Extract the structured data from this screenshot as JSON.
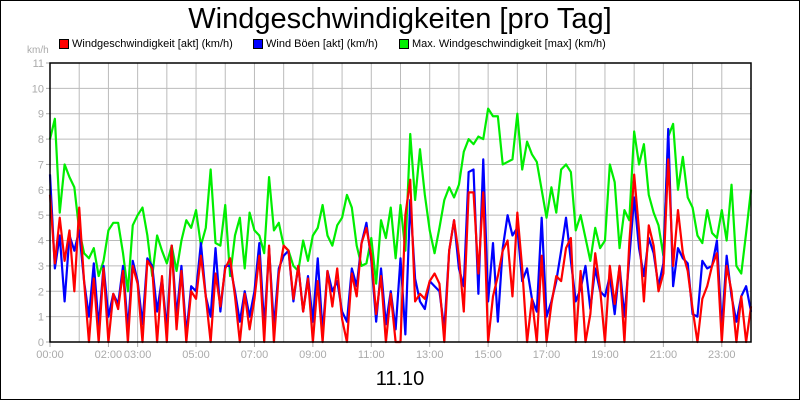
{
  "chart_data": {
    "type": "line",
    "title": "Windgeschwindigkeiten [pro Tag]",
    "subtitle": "11.10",
    "ylabel": "km/h",
    "xlabel": "",
    "ylim": [
      0,
      11
    ],
    "xlim": [
      "00:00",
      "24:00"
    ],
    "grid": true,
    "legend_position": "top",
    "y_ticks": [
      "0",
      "1",
      "2",
      "3",
      "4",
      "5",
      "6",
      "7",
      "8",
      "9",
      "10",
      "11"
    ],
    "x_ticks": [
      {
        "label": "00:00",
        "hour": 0
      },
      {
        "label": "02:00",
        "hour": 2
      },
      {
        "label": "03:00",
        "hour": 3
      },
      {
        "label": "05:00",
        "hour": 5
      },
      {
        "label": "07:00",
        "hour": 7
      },
      {
        "label": "09:00",
        "hour": 9
      },
      {
        "label": "11:00",
        "hour": 11
      },
      {
        "label": "13:00",
        "hour": 13
      },
      {
        "label": "15:00",
        "hour": 15
      },
      {
        "label": "17:00",
        "hour": 17
      },
      {
        "label": "19:00",
        "hour": 19
      },
      {
        "label": "21:00",
        "hour": 21
      },
      {
        "label": "23:00",
        "hour": 23
      }
    ],
    "x": [
      "00:00",
      "00:10",
      "00:20",
      "00:30",
      "00:40",
      "00:50",
      "01:00",
      "01:10",
      "01:20",
      "01:30",
      "01:40",
      "01:50",
      "02:00",
      "02:10",
      "02:20",
      "02:30",
      "02:40",
      "02:50",
      "03:00",
      "03:10",
      "03:20",
      "03:30",
      "03:40",
      "03:50",
      "04:00",
      "04:10",
      "04:20",
      "04:30",
      "04:40",
      "04:50",
      "05:00",
      "05:10",
      "05:20",
      "05:30",
      "05:40",
      "05:50",
      "06:00",
      "06:10",
      "06:20",
      "06:30",
      "06:40",
      "06:50",
      "07:00",
      "07:10",
      "07:20",
      "07:30",
      "07:40",
      "07:50",
      "08:00",
      "08:10",
      "08:20",
      "08:30",
      "08:40",
      "08:50",
      "09:00",
      "09:10",
      "09:20",
      "09:30",
      "09:40",
      "09:50",
      "10:00",
      "10:10",
      "10:20",
      "10:30",
      "10:40",
      "10:50",
      "11:00",
      "11:10",
      "11:20",
      "11:30",
      "11:40",
      "11:50",
      "12:00",
      "12:10",
      "12:20",
      "12:30",
      "12:40",
      "12:50",
      "13:00",
      "13:10",
      "13:20",
      "13:30",
      "13:40",
      "13:50",
      "14:00",
      "14:10",
      "14:20",
      "14:30",
      "14:40",
      "14:50",
      "15:00",
      "15:10",
      "15:20",
      "15:30",
      "15:40",
      "15:50",
      "16:00",
      "16:10",
      "16:20",
      "16:30",
      "16:40",
      "16:50",
      "17:00",
      "17:10",
      "17:20",
      "17:30",
      "17:40",
      "17:50",
      "18:00",
      "18:10",
      "18:20",
      "18:30",
      "18:40",
      "18:50",
      "19:00",
      "19:10",
      "19:20",
      "19:30",
      "19:40",
      "19:50",
      "20:00",
      "20:10",
      "20:20",
      "20:30",
      "20:40",
      "20:50",
      "21:00",
      "21:10",
      "21:20",
      "21:30",
      "21:40",
      "21:50",
      "22:00",
      "22:10",
      "22:20",
      "22:30",
      "22:40",
      "22:50",
      "23:00",
      "23:10",
      "23:20",
      "23:30",
      "23:40",
      "23:50",
      "24:00"
    ],
    "series": [
      {
        "name": "Max. Windgeschwindigkeit [max] (km/h)",
        "color": "#00ee00",
        "values": [
          8.0,
          8.8,
          5.1,
          7.0,
          6.5,
          6.1,
          4.4,
          3.5,
          3.3,
          3.7,
          2.6,
          3.2,
          4.4,
          4.7,
          4.7,
          3.5,
          2.0,
          4.6,
          5.0,
          5.3,
          4.2,
          2.6,
          4.2,
          3.6,
          3.1,
          3.8,
          2.8,
          4.0,
          4.8,
          4.5,
          5.2,
          3.8,
          4.5,
          6.8,
          3.9,
          3.8,
          5.4,
          2.6,
          4.2,
          4.9,
          2.9,
          5.1,
          4.4,
          4.2,
          3.5,
          6.5,
          4.4,
          4.7,
          3.8,
          3.6,
          3.0,
          2.8,
          4.0,
          3.2,
          4.2,
          4.5,
          5.4,
          4.2,
          3.8,
          4.6,
          4.9,
          5.8,
          5.3,
          3.8,
          3.0,
          3.1,
          4.1,
          2.3,
          4.8,
          4.1,
          5.3,
          3.3,
          5.4,
          3.6,
          8.2,
          5.6,
          7.6,
          5.8,
          4.4,
          3.5,
          4.5,
          5.6,
          6.1,
          5.7,
          6.2,
          7.5,
          8.0,
          7.8,
          8.1,
          8.0,
          9.2,
          8.9,
          8.9,
          7.0,
          7.1,
          7.2,
          9.0,
          6.8,
          7.9,
          7.4,
          7.1,
          6.0,
          4.9,
          6.1,
          5.1,
          6.8,
          7.0,
          6.7,
          4.4,
          5.0,
          4.1,
          3.2,
          4.5,
          3.7,
          4.0,
          7.0,
          6.3,
          3.7,
          5.2,
          4.8,
          8.3,
          7.0,
          7.8,
          5.8,
          5.1,
          4.6,
          3.4,
          8.1,
          8.6,
          6.0,
          7.3,
          5.7,
          5.3,
          4.2,
          3.9,
          5.2,
          4.3,
          4.1,
          5.2,
          4.0,
          6.2,
          3.0,
          2.7,
          4.3,
          6.0
        ]
      },
      {
        "name": "Wind Böen [akt] (km/h)",
        "color": "#0000ff",
        "values": [
          6.6,
          2.9,
          4.2,
          1.6,
          4.2,
          3.6,
          4.4,
          2.4,
          1.0,
          3.1,
          0.6,
          3.0,
          1.0,
          1.9,
          1.5,
          3.0,
          0.5,
          3.2,
          2.4,
          0.7,
          3.3,
          3.0,
          1.2,
          2.5,
          0.5,
          3.8,
          1.0,
          3.0,
          0.3,
          2.2,
          2.0,
          3.9,
          1.8,
          1.0,
          3.7,
          1.2,
          3.0,
          3.0,
          2.0,
          0.8,
          2.0,
          1.0,
          2.0,
          3.9,
          0.6,
          3.7,
          0.6,
          2.9,
          3.4,
          3.6,
          1.6,
          3.0,
          1.2,
          2.6,
          0.8,
          3.3,
          0.4,
          2.8,
          2.0,
          2.4,
          1.2,
          0.8,
          2.9,
          2.2,
          3.9,
          4.7,
          3.2,
          0.8,
          2.9,
          0.7,
          2.0,
          0.5,
          3.3,
          0.3,
          5.6,
          2.5,
          1.6,
          1.3,
          2.4,
          2.2,
          2.0,
          0.5,
          3.6,
          4.8,
          2.9,
          2.2,
          6.7,
          6.8,
          1.9,
          7.2,
          1.6,
          3.9,
          0.8,
          3.7,
          5.0,
          4.2,
          4.5,
          2.4,
          2.9,
          1.7,
          1.2,
          4.9,
          1.0,
          1.6,
          2.4,
          3.6,
          4.9,
          3.2,
          1.6,
          2.1,
          3.0,
          1.3,
          2.9,
          2.0,
          1.8,
          2.6,
          1.1,
          3.0,
          1.0,
          3.3,
          5.7,
          3.7,
          2.6,
          4.1,
          3.5,
          2.2,
          3.1,
          8.4,
          2.2,
          3.7,
          3.3,
          3.1,
          1.1,
          1.0,
          3.2,
          2.9,
          3.0,
          4.0,
          0.5,
          3.4,
          1.8,
          0.8,
          1.8,
          2.2,
          1.2
        ]
      },
      {
        "name": "Windgeschwindigkeit [akt] (km/h)",
        "color": "#ff0000",
        "values": [
          5.8,
          3.1,
          4.9,
          3.2,
          4.4,
          2.0,
          5.3,
          2.4,
          0,
          2.5,
          0,
          2.9,
          0,
          1.9,
          1.3,
          2.8,
          0,
          3.0,
          2.3,
          0,
          3.2,
          2.9,
          0,
          2.6,
          0,
          3.8,
          0.5,
          2.8,
          0,
          2.0,
          1.7,
          3.4,
          1.8,
          0,
          2.7,
          1.4,
          2.9,
          3.3,
          1.8,
          0,
          1.9,
          0.5,
          1.7,
          3.4,
          0,
          3.8,
          0,
          2.7,
          3.8,
          3.6,
          1.7,
          3.0,
          1.2,
          2.5,
          0,
          2.4,
          0,
          2.8,
          1.4,
          2.9,
          0.9,
          0,
          2.7,
          1.8,
          3.9,
          4.5,
          3.4,
          1.1,
          2.6,
          0,
          1.9,
          0,
          0,
          5.0,
          6.4,
          1.6,
          1.9,
          1.7,
          2.4,
          2.7,
          2.3,
          0,
          3.6,
          4.8,
          3.4,
          1.2,
          5.9,
          5.9,
          2.7,
          5.9,
          0,
          1.8,
          2.6,
          3.6,
          4.0,
          1.8,
          5.1,
          2.9,
          0,
          1.7,
          0,
          3.4,
          0,
          1.5,
          2.6,
          2.4,
          3.7,
          4.1,
          0,
          2.8,
          0,
          1.1,
          3.5,
          2.1,
          0,
          3.0,
          1.5,
          3.0,
          0,
          3.9,
          6.6,
          4.4,
          1.6,
          4.6,
          3.8,
          2.0,
          2.7,
          7.2,
          3.0,
          5.2,
          3.5,
          2.8,
          1.3,
          0,
          1.7,
          2.2,
          3.0,
          3.5,
          0,
          3.0,
          2.0,
          0,
          1.8,
          0,
          1.4
        ]
      }
    ],
    "legend": [
      {
        "label": "Windgeschwindigkeit [akt] (km/h)",
        "color": "#ff0000"
      },
      {
        "label": "Wind Böen [akt] (km/h)",
        "color": "#0000ff"
      },
      {
        "label": "Max. Windgeschwindigkeit [max] (km/h)",
        "color": "#00ee00"
      }
    ]
  }
}
